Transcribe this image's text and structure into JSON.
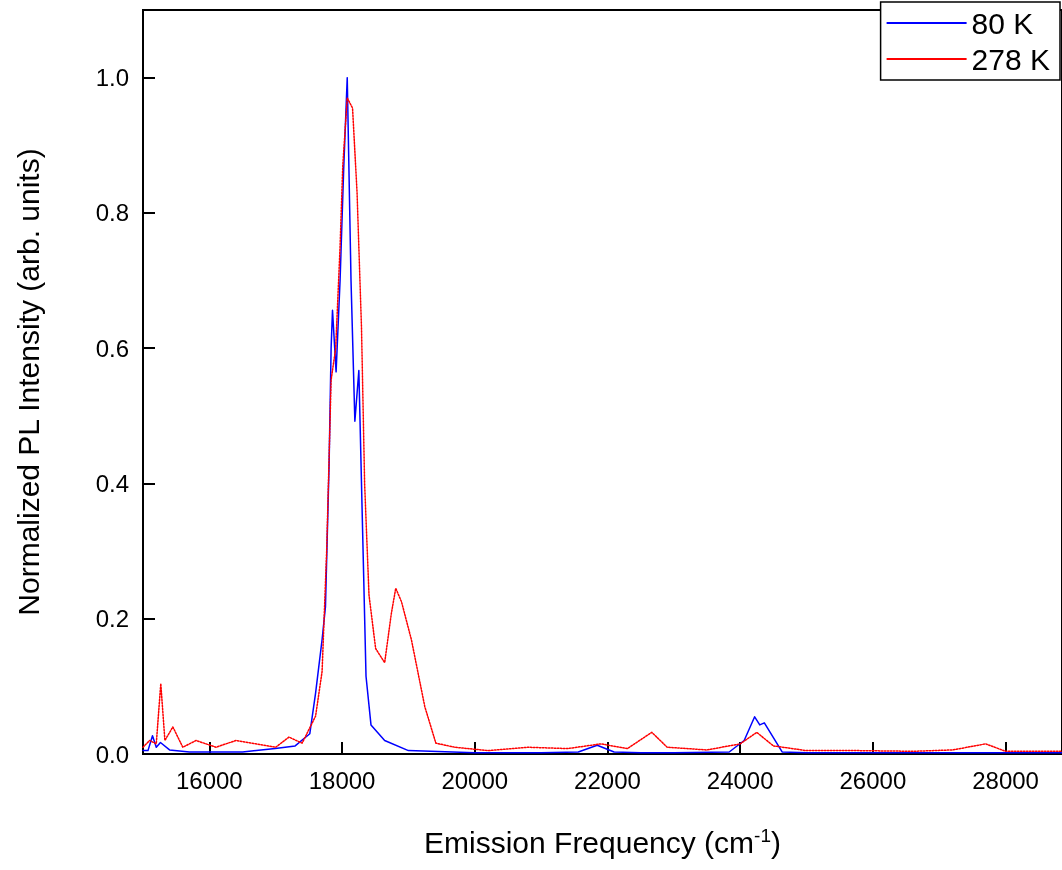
{
  "chart_data": {
    "type": "line",
    "xlabel": "Emission Frequency (cm$^{-1}$)",
    "ylabel": "Normalized PL Intensity (arb. units)",
    "xlim": [
      15000,
      28850
    ],
    "xticks": [
      16000,
      18000,
      20000,
      22000,
      24000,
      26000,
      28000
    ],
    "ylim": [
      0,
      1.1
    ],
    "yticks": [
      {
        "value": 0,
        "label": "0.0"
      },
      {
        "value": 0.2,
        "label": "0.2"
      },
      {
        "value": 0.4,
        "label": "0.4"
      },
      {
        "value": 0.6,
        "label": "0.6"
      },
      {
        "value": 0.8,
        "label": "0.8"
      },
      {
        "value": 1,
        "label": "1.0"
      }
    ],
    "grid": false,
    "legend": "top right",
    "marker": "none",
    "series": [
      {
        "name": "80 K",
        "color": "#0000ff",
        "line_style": "solid",
        "x": [
          15000,
          15075,
          15143,
          15200,
          15263,
          15400,
          15700,
          16000,
          16500,
          16992,
          17293,
          17514,
          17601,
          17700,
          17750,
          17805,
          17835,
          17856,
          17910,
          17970,
          18024,
          18078,
          18135,
          18193,
          18253,
          18361,
          18436,
          18642,
          19000,
          20000,
          21000,
          21560,
          21845,
          22100,
          22500,
          23000,
          23835,
          24060,
          24218,
          24295,
          24364,
          24632,
          25000,
          26000,
          27000,
          28000,
          28850
        ],
        "values": [
          0.005,
          0.005,
          0.027,
          0.01,
          0.017,
          0.006,
          0.003,
          0.003,
          0.003,
          0.008,
          0.012,
          0.03,
          0.09,
          0.17,
          0.218,
          0.43,
          0.6,
          0.656,
          0.565,
          0.7,
          0.863,
          1.0,
          0.7,
          0.492,
          0.567,
          0.115,
          0.043,
          0.02,
          0.005,
          0.002,
          0.002,
          0.003,
          0.013,
          0.003,
          0.002,
          0.002,
          0.003,
          0.02,
          0.055,
          0.043,
          0.046,
          0.003,
          0.002,
          0.002,
          0.002,
          0.002,
          0.002
        ]
      },
      {
        "name": "278 K",
        "color": "#ff0000",
        "line_style": "dotted",
        "x": [
          15000,
          15100,
          15200,
          15268,
          15330,
          15450,
          15600,
          15800,
          16100,
          16400,
          16700,
          17000,
          17200,
          17398,
          17601,
          17699,
          17768,
          17835,
          17904,
          17970,
          18011,
          18078,
          18158,
          18226,
          18293,
          18340,
          18406,
          18506,
          18642,
          18743,
          18809,
          18896,
          19045,
          19247,
          19414,
          19700,
          20200,
          20800,
          21400,
          21900,
          22300,
          22668,
          22900,
          23500,
          24000,
          24250,
          24500,
          25000,
          25800,
          26600,
          27200,
          27699,
          28000,
          28850
        ],
        "values": [
          0.01,
          0.02,
          0.015,
          0.104,
          0.02,
          0.04,
          0.01,
          0.02,
          0.01,
          0.02,
          0.015,
          0.01,
          0.025,
          0.016,
          0.056,
          0.122,
          0.3,
          0.553,
          0.6,
          0.75,
          0.87,
          0.97,
          0.955,
          0.83,
          0.63,
          0.4,
          0.235,
          0.156,
          0.135,
          0.208,
          0.245,
          0.225,
          0.169,
          0.07,
          0.016,
          0.01,
          0.005,
          0.01,
          0.008,
          0.015,
          0.008,
          0.032,
          0.01,
          0.006,
          0.015,
          0.032,
          0.012,
          0.005,
          0.005,
          0.004,
          0.006,
          0.015,
          0.004,
          0.004
        ]
      }
    ]
  }
}
